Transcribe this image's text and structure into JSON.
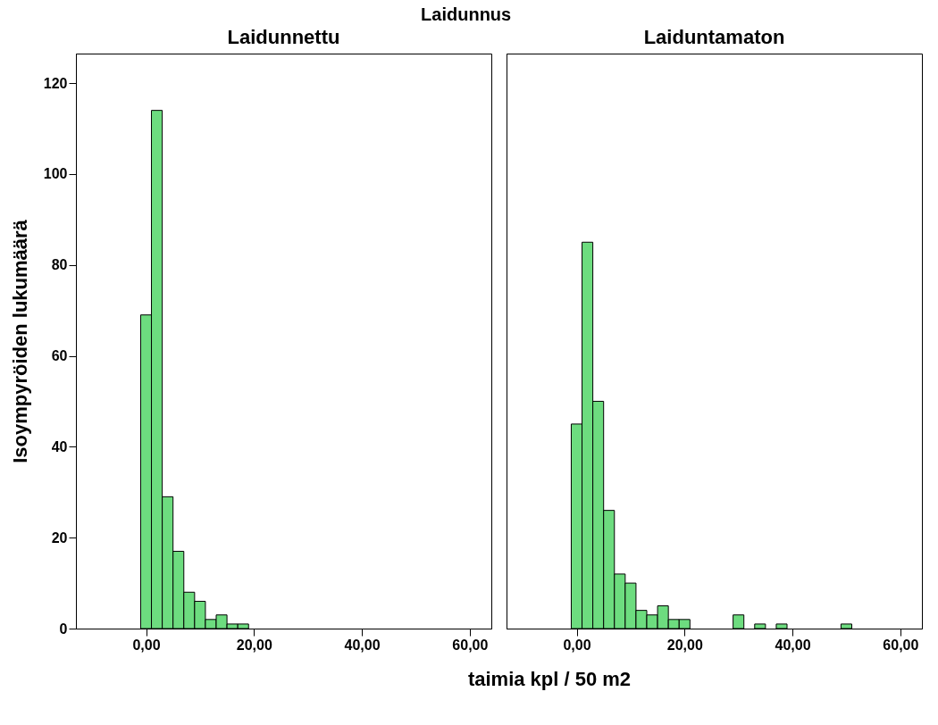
{
  "chart_data": [
    {
      "type": "histogram",
      "title": "Laidunnettu",
      "annotations": [
        "Laidunnus"
      ],
      "xlabel": "taimia kpl / 50 m2",
      "ylabel": "Isoympyröiden lukumäärä",
      "color": "#6ddc7f",
      "bins": [
        -1,
        1,
        3,
        5,
        7,
        9,
        11,
        13,
        15,
        17,
        19
      ],
      "values": [
        69,
        114,
        29,
        17,
        8,
        6,
        2,
        3,
        1,
        1
      ],
      "xlim": [
        -13,
        64
      ],
      "ylim": [
        0,
        126.5
      ],
      "xticks": [
        {
          "value": 0,
          "label": "0,00"
        },
        {
          "value": 20,
          "label": "20,00"
        },
        {
          "value": 40,
          "label": "40,00"
        },
        {
          "value": 60,
          "label": "60,00"
        }
      ],
      "yticks": [
        0,
        20,
        40,
        60,
        80,
        100,
        120
      ],
      "grid": false
    },
    {
      "type": "histogram",
      "title": "Laiduntamaton",
      "color": "#6ddc7f",
      "bins": [
        -1,
        1,
        3,
        5,
        7,
        9,
        11,
        13,
        15,
        17,
        19,
        21,
        23,
        25,
        27,
        29,
        31,
        33,
        35,
        37,
        39,
        41,
        43,
        45,
        47,
        49,
        51
      ],
      "values": [
        45,
        85,
        50,
        26,
        12,
        10,
        4,
        3,
        5,
        2,
        2,
        0,
        0,
        0,
        0,
        3,
        0,
        1,
        0,
        1,
        0,
        0,
        0,
        0,
        0,
        1
      ],
      "xlim": [
        -13,
        64
      ],
      "ylim": [
        0,
        126.5
      ],
      "xticks": [
        {
          "value": 0,
          "label": "0,00"
        },
        {
          "value": 20,
          "label": "20,00"
        },
        {
          "value": 40,
          "label": "40,00"
        },
        {
          "value": 60,
          "label": "60,00"
        }
      ],
      "yticks": [
        0,
        20,
        40,
        60,
        80,
        100,
        120
      ],
      "tick_labels": "x",
      "grid": false
    }
  ]
}
